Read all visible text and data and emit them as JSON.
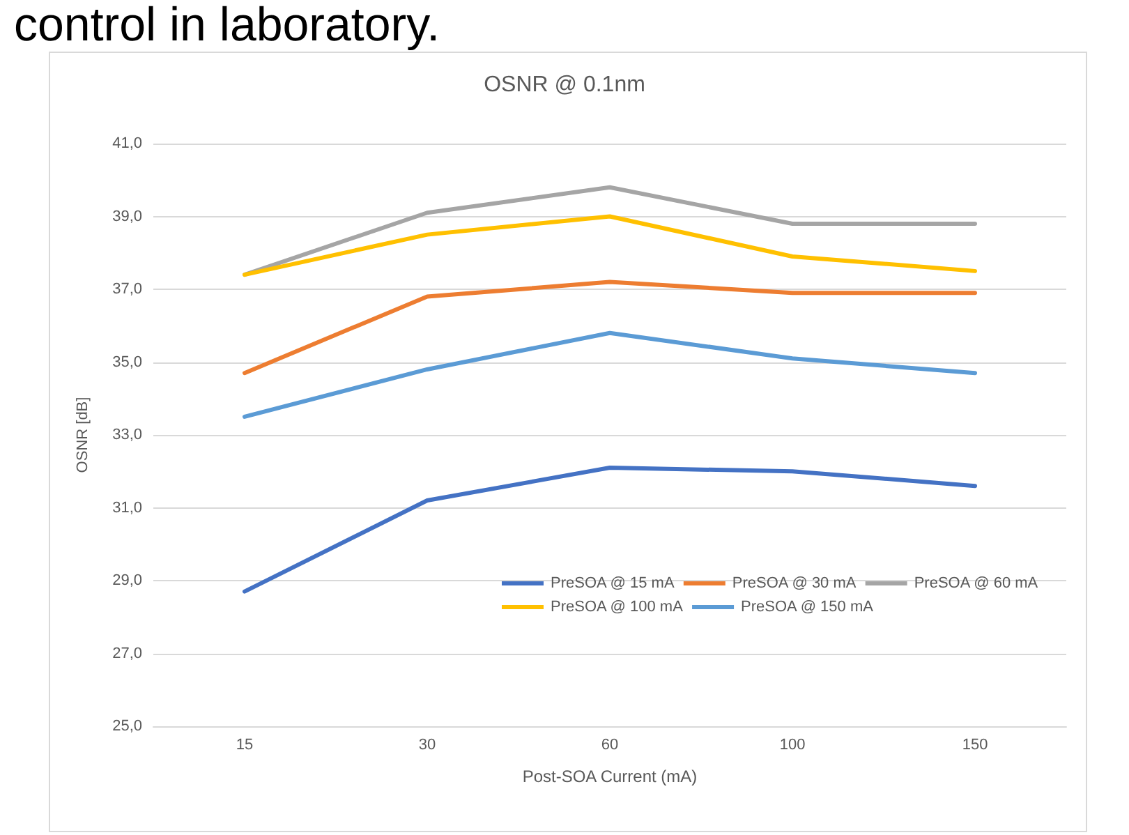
{
  "chart_data": {
    "type": "line",
    "title": "OSNR @ 0.1nm",
    "annotations": [
      "control in laboratory."
    ],
    "xlabel": "Post-SOA Current (mA)",
    "ylabel": "OSNR [dB]",
    "categories": [
      "15",
      "30",
      "60",
      "100",
      "150"
    ],
    "series": [
      {
        "name": "PreSOA @ 15 mA",
        "color": "#4472c4",
        "values": [
          28.7,
          31.2,
          32.1,
          32.0,
          31.6
        ]
      },
      {
        "name": "PreSOA @ 30 mA",
        "color": "#ed7d31",
        "values": [
          34.7,
          36.8,
          37.2,
          36.9,
          36.9
        ]
      },
      {
        "name": "PreSOA @ 60 mA",
        "color": "#a5a5a5",
        "values": [
          37.4,
          39.1,
          39.8,
          38.8,
          38.8
        ]
      },
      {
        "name": "PreSOA @ 100 mA",
        "color": "#ffc000",
        "values": [
          37.4,
          38.5,
          39.0,
          37.9,
          37.5
        ]
      },
      {
        "name": "PreSOA @ 150 mA",
        "color": "#5b9bd5",
        "values": [
          33.5,
          34.8,
          35.8,
          35.1,
          34.7
        ]
      }
    ],
    "ylim": [
      25,
      41
    ],
    "yticks": [
      {
        "value": 25,
        "label": "25,0"
      },
      {
        "value": 27,
        "label": "27,0"
      },
      {
        "value": 29,
        "label": "29,0"
      },
      {
        "value": 31,
        "label": "31,0"
      },
      {
        "value": 33,
        "label": "33,0"
      },
      {
        "value": 35,
        "label": "35,0"
      },
      {
        "value": 37,
        "label": "37,0"
      },
      {
        "value": 39,
        "label": "39,0"
      },
      {
        "value": 41,
        "label": "41,0"
      }
    ],
    "grid": "y",
    "legend": "bottom",
    "marker": "none",
    "line_style": "solid"
  }
}
